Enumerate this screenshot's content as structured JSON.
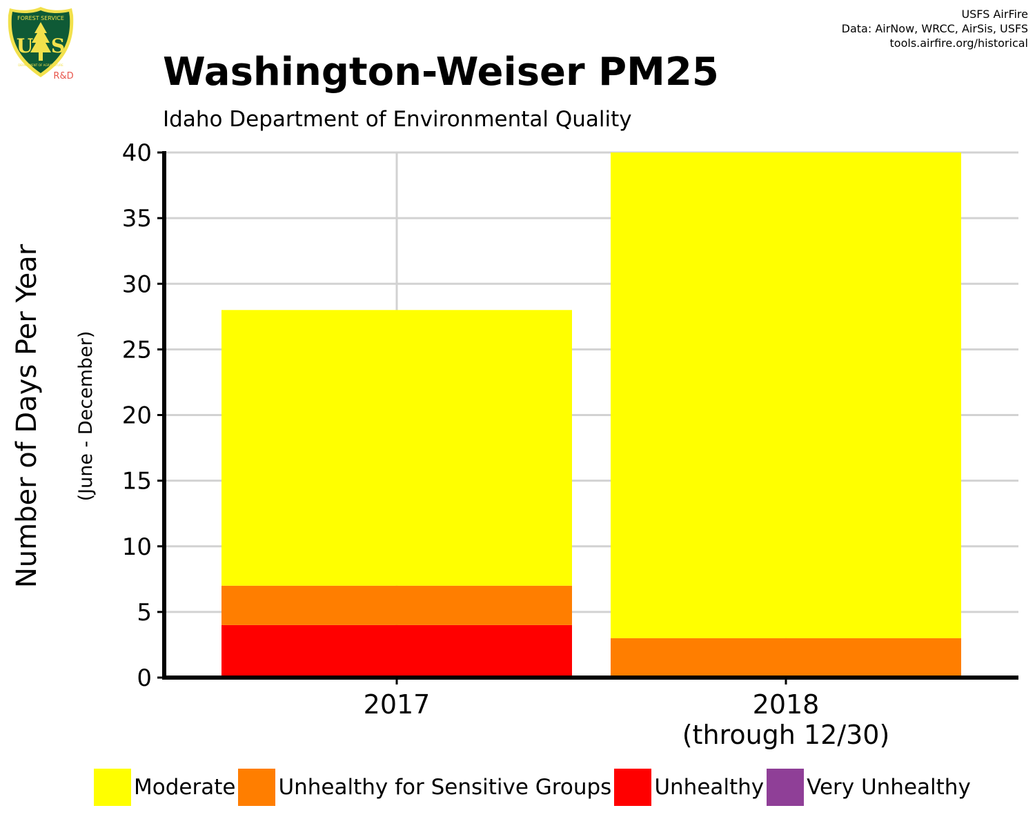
{
  "logo": {
    "top_text": "FOREST SERVICE",
    "letters": "US",
    "bottom_text": "DEPARTMENT OF AGRICULTURE",
    "tag": "R&D"
  },
  "credits": {
    "line1": "USFS AirFire",
    "line2": "Data: AirNow, WRCC, AirSis, USFS",
    "line3": "tools.airfire.org/historical"
  },
  "chart_data": {
    "type": "bar",
    "stacked": true,
    "title": "Washington-Weiser PM25",
    "subtitle": "Idaho Department of Environmental Quality",
    "ylabel": "Number of Days Per Year",
    "ylabel_sub": "(June - December)",
    "xlabel": "",
    "ylim": [
      0,
      40
    ],
    "yticks": [
      "0",
      "5",
      "10",
      "15",
      "20",
      "25",
      "30",
      "35",
      "40"
    ],
    "grid": true,
    "legend": "bottom",
    "categories": [
      {
        "label": "2017",
        "sublabel": ""
      },
      {
        "label": "2018",
        "sublabel": "(through 12/30)"
      }
    ],
    "series": [
      {
        "name": "Unhealthy",
        "color": "#ff0000",
        "values": [
          4,
          0
        ]
      },
      {
        "name": "Unhealthy for Sensitive Groups",
        "color": "#ff7e00",
        "values": [
          3,
          3
        ]
      },
      {
        "name": "Moderate",
        "color": "#ffff00",
        "values": [
          21,
          37
        ]
      },
      {
        "name": "Very Unhealthy",
        "color": "#8f3f97",
        "values": [
          0,
          0
        ]
      }
    ],
    "legend_order": [
      {
        "name": "Moderate",
        "color": "#ffff00"
      },
      {
        "name": "Unhealthy for Sensitive Groups",
        "color": "#ff7e00"
      },
      {
        "name": "Unhealthy",
        "color": "#ff0000"
      },
      {
        "name": "Very Unhealthy",
        "color": "#8f3f97"
      }
    ]
  }
}
